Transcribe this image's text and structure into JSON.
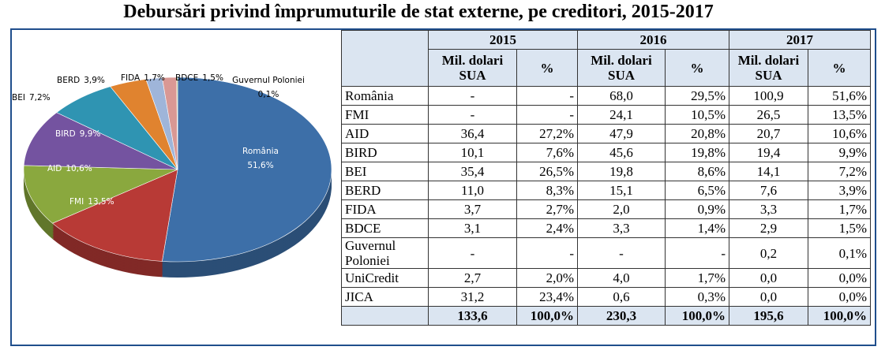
{
  "title": "Debursări privind împrumuturile de stat externe, pe creditori, 2015-2017",
  "chart_data": {
    "type": "pie",
    "categories": [
      "România",
      "FMI",
      "AID",
      "BIRD",
      "BEI",
      "BERD",
      "FIDA",
      "BDCE",
      "Guvernul Poloniei"
    ],
    "values": [
      51.6,
      13.5,
      10.6,
      9.9,
      7.2,
      3.9,
      1.7,
      1.5,
      0.1
    ],
    "value_labels": [
      "51,6%",
      "13,5%",
      "10,6%",
      "9,9%",
      "7,2%",
      "3,9%",
      "1,7%",
      "1,5%",
      "0,1%"
    ],
    "colors": [
      "#3d6fa8",
      "#b83a36",
      "#8aa83e",
      "#7453a0",
      "#2f94b2",
      "#e0832f",
      "#9fb5d9",
      "#d99894",
      "#a8bf6a"
    ]
  },
  "table": {
    "years": [
      "2015",
      "2016",
      "2017"
    ],
    "subheaders": [
      "Mil. dolari SUA",
      "%",
      "Mil. dolari SUA",
      "%",
      "Mil. dolari SUA",
      "%"
    ],
    "rows": [
      [
        "România",
        "-",
        "-",
        "68,0",
        "29,5%",
        "100,9",
        "51,6%"
      ],
      [
        "FMI",
        "-",
        "-",
        "24,1",
        "10,5%",
        "26,5",
        "13,5%"
      ],
      [
        "AID",
        "36,4",
        "27,2%",
        "47,9",
        "20,8%",
        "20,7",
        "10,6%"
      ],
      [
        "BIRD",
        "10,1",
        "7,6%",
        "45,6",
        "19,8%",
        "19,4",
        "9,9%"
      ],
      [
        "BEI",
        "35,4",
        "26,5%",
        "19,8",
        "8,6%",
        "14,1",
        "7,2%"
      ],
      [
        "BERD",
        "11,0",
        "8,3%",
        "15,1",
        "6,5%",
        "7,6",
        "3,9%"
      ],
      [
        "FIDA",
        "3,7",
        "2,7%",
        "2,0",
        "0,9%",
        "3,3",
        "1,7%"
      ],
      [
        "BDCE",
        "3,1",
        "2,4%",
        "3,3",
        "1,4%",
        "2,9",
        "1,5%"
      ],
      [
        "Guvernul Poloniei",
        "-",
        "-",
        "-",
        "-",
        "0,2",
        "0,1%"
      ],
      [
        "UniCredit",
        "2,7",
        "2,0%",
        "4,0",
        "1,7%",
        "0,0",
        "0,0%"
      ],
      [
        "JICA",
        "31,2",
        "23,4%",
        "0,6",
        "0,3%",
        "0,0",
        "0,0%"
      ]
    ],
    "total": [
      "133,6",
      "100,0%",
      "230,3",
      "100,0%",
      "195,6",
      "100,0%"
    ]
  }
}
